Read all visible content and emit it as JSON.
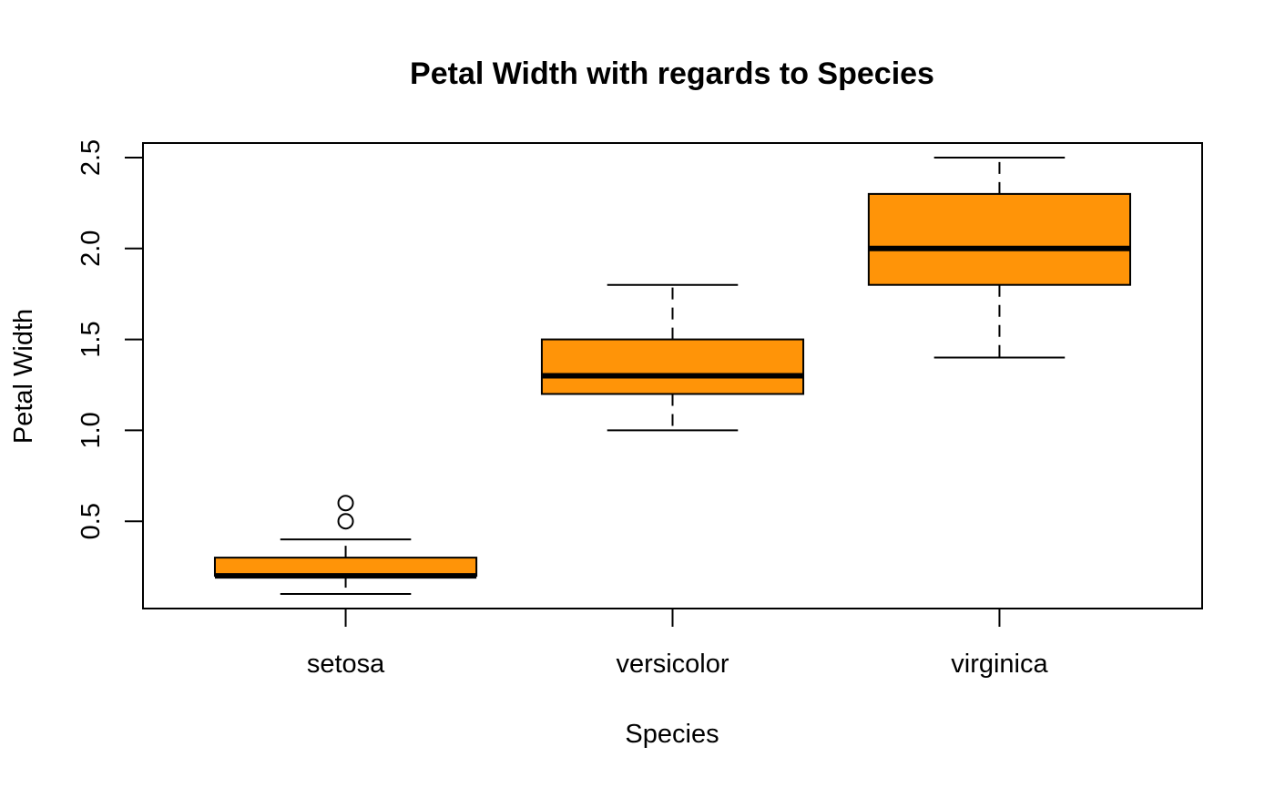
{
  "chart_data": {
    "type": "boxplot",
    "title": "Petal Width with regards to Species",
    "xlabel": "Species",
    "ylabel": "Petal Width",
    "categories": [
      "setosa",
      "versicolor",
      "virginica"
    ],
    "ylim": [
      0.02,
      2.58
    ],
    "yticks": [
      0.5,
      1.0,
      1.5,
      2.0,
      2.5
    ],
    "ytick_labels": [
      "0.5",
      "1.0",
      "1.5",
      "2.0",
      "2.5"
    ],
    "box_color": "#FF9408",
    "grid": false,
    "boxes": [
      {
        "category": "setosa",
        "whisker_low": 0.1,
        "q1": 0.2,
        "median": 0.2,
        "q3": 0.3,
        "whisker_high": 0.4,
        "outliers": [
          0.5,
          0.6
        ]
      },
      {
        "category": "versicolor",
        "whisker_low": 1.0,
        "q1": 1.2,
        "median": 1.3,
        "q3": 1.5,
        "whisker_high": 1.8,
        "outliers": []
      },
      {
        "category": "virginica",
        "whisker_low": 1.4,
        "q1": 1.8,
        "median": 2.0,
        "q3": 2.3,
        "whisker_high": 2.5,
        "outliers": []
      }
    ]
  }
}
